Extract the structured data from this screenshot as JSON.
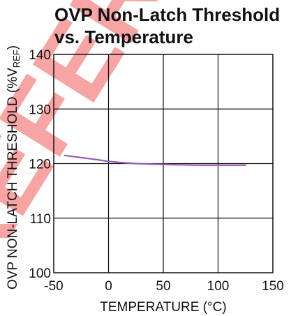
{
  "chart_data": {
    "type": "line",
    "title_line1": "OVP Non-Latch Threshold",
    "title_line2": "vs. Temperature",
    "xlabel": "TEMPERATURE (°C)",
    "ylabel_main": "OVP NON-LATCH THRESHOLD (%V",
    "ylabel_sub": "REF",
    "ylabel_close": ")",
    "xlim": [
      -50,
      150
    ],
    "ylim": [
      100,
      140
    ],
    "x_ticks": [
      -50,
      0,
      50,
      100,
      150
    ],
    "y_ticks": [
      100,
      110,
      120,
      130,
      140
    ],
    "grid": true,
    "series": [
      {
        "color": "#9b59b6",
        "x": [
          -40,
          -25,
          -10,
          0,
          10,
          25,
          40,
          60,
          80,
          100,
          125
        ],
        "y": [
          121.5,
          121.1,
          120.7,
          120.4,
          120.2,
          120.0,
          119.9,
          119.8,
          119.7,
          119.7,
          119.7
        ]
      }
    ]
  },
  "watermark": {
    "text": "REFER",
    "color": "#f05a5a"
  }
}
